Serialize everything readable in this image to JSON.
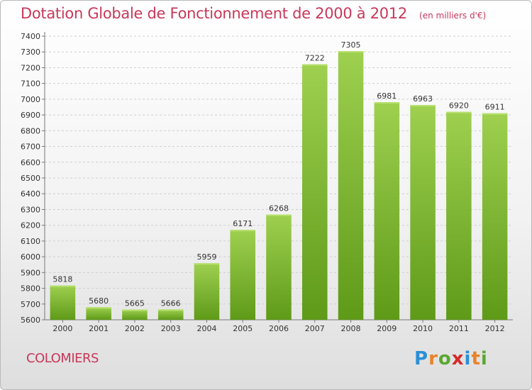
{
  "header": {
    "title": "Dotation Globale de Fonctionnement de 2000 à 2012",
    "subtitle": "(en milliers d'€)"
  },
  "footer": {
    "city": "COLOMIERS",
    "logo_letters": [
      "P",
      "r",
      "o",
      "x",
      "i",
      "t",
      "i"
    ],
    "logo_colors": [
      "#2a8fd6",
      "#e8832a",
      "#5aa832",
      "#d62a2a",
      "#2a8fd6",
      "#e8832a",
      "#5aa832"
    ]
  },
  "colors": {
    "title": "#c8385a",
    "bar_top": "#9fd050",
    "bar_bottom": "#5e9a18"
  },
  "chart_data": {
    "type": "bar",
    "categories": [
      "2000",
      "2001",
      "2002",
      "2003",
      "2004",
      "2005",
      "2006",
      "2007",
      "2008",
      "2009",
      "2010",
      "2011",
      "2012"
    ],
    "values": [
      5818,
      5680,
      5665,
      5666,
      5959,
      6171,
      6268,
      7222,
      7305,
      6981,
      6963,
      6920,
      6911
    ],
    "ylim": [
      5600,
      7400
    ],
    "yticks": [
      5600,
      5700,
      5800,
      5900,
      6000,
      6100,
      6200,
      6300,
      6400,
      6500,
      6600,
      6700,
      6800,
      6900,
      7000,
      7100,
      7200,
      7300,
      7400
    ],
    "grid": true
  }
}
